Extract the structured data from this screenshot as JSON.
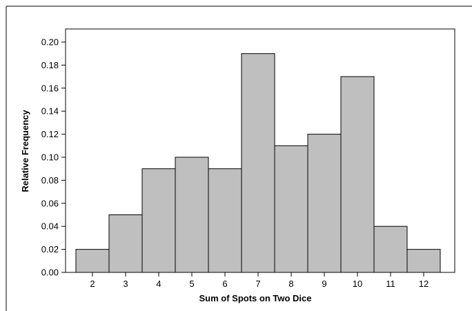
{
  "chart_data": {
    "type": "bar",
    "title": "",
    "xlabel": "Sum of Spots on Two Dice",
    "ylabel": "Relative Frequency",
    "categories": [
      "2",
      "3",
      "4",
      "5",
      "6",
      "7",
      "8",
      "9",
      "10",
      "11",
      "12"
    ],
    "values": [
      0.02,
      0.05,
      0.09,
      0.1,
      0.09,
      0.19,
      0.11,
      0.12,
      0.17,
      0.04,
      0.02
    ],
    "ylim": [
      0,
      0.2
    ],
    "yticks": [
      "0.00",
      "0.02",
      "0.04",
      "0.06",
      "0.08",
      "0.10",
      "0.12",
      "0.14",
      "0.16",
      "0.18",
      "0.20"
    ],
    "grid": false,
    "legend": "none",
    "bar_color": "#bfbfbf",
    "edge_color": "#000000"
  }
}
